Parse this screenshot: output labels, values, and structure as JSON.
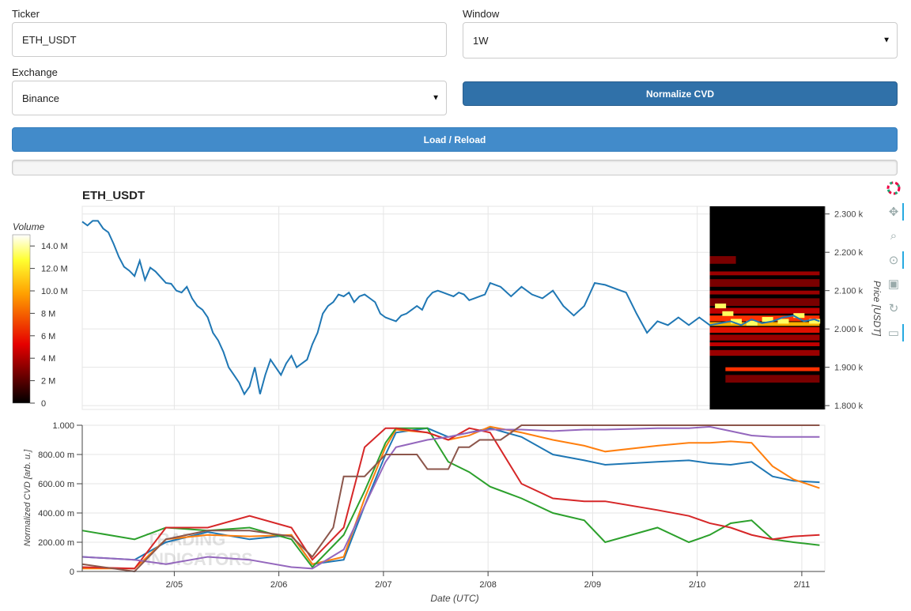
{
  "form": {
    "ticker_label": "Ticker",
    "ticker_value": "ETH_USDT",
    "window_label": "Window",
    "window_value": "1W",
    "exchange_label": "Exchange",
    "exchange_value": "Binance",
    "normalize_button": "Normalize CVD",
    "load_button": "Load / Reload"
  },
  "colors": {
    "primary_button": "#428bca",
    "active_button": "#3071a9",
    "price_line": "#1f77b4"
  },
  "toolbar": {
    "icons": [
      "bokeh-logo-icon",
      "pan-icon",
      "box-zoom-icon",
      "wheel-zoom-icon",
      "save-icon",
      "reset-icon",
      "hover-icon"
    ]
  },
  "chart_data": [
    {
      "type": "line",
      "title": "ETH_USDT",
      "ylabel": "Price [USDT]",
      "y_ticks": [
        "1.800 k",
        "1.900 k",
        "2.000 k",
        "2.100 k",
        "2.200 k",
        "2.300 k"
      ],
      "ylim": [
        1790,
        2320
      ],
      "xlim": [
        0,
        7.1
      ],
      "series": [
        {
          "x": [
            0.0,
            0.05,
            0.1,
            0.15,
            0.2,
            0.25,
            0.3,
            0.35,
            0.4,
            0.45,
            0.5,
            0.55,
            0.6,
            0.65,
            0.7,
            0.75,
            0.8,
            0.85,
            0.9,
            0.95,
            1.0,
            1.05,
            1.1,
            1.15,
            1.2,
            1.25,
            1.3,
            1.35,
            1.4,
            1.45,
            1.5,
            1.55,
            1.6,
            1.65,
            1.7,
            1.75,
            1.8,
            1.85,
            1.9,
            1.95,
            2.0,
            2.05,
            2.1,
            2.15,
            2.2,
            2.25,
            2.3,
            2.35,
            2.4,
            2.45,
            2.5,
            2.55,
            2.6,
            2.65,
            2.7,
            2.75,
            2.8,
            2.85,
            2.9,
            2.95,
            3.0,
            3.05,
            3.1,
            3.15,
            3.2,
            3.25,
            3.3,
            3.35,
            3.4,
            3.45,
            3.5,
            3.55,
            3.6,
            3.65,
            3.7,
            3.75,
            3.8,
            3.85,
            3.9,
            3.95,
            4.0,
            4.1,
            4.2,
            4.3,
            4.4,
            4.5,
            4.6,
            4.7,
            4.8,
            4.9,
            5.0,
            5.1,
            5.2,
            5.3,
            5.4,
            5.5,
            5.6,
            5.7,
            5.8,
            5.9,
            6.0,
            6.1,
            6.2,
            6.3,
            6.4,
            6.5,
            6.6,
            6.7,
            6.8,
            6.9,
            7.0,
            7.05
          ],
          "y": [
            2280,
            2270,
            2282,
            2282,
            2262,
            2252,
            2222,
            2188,
            2162,
            2152,
            2138,
            2178,
            2128,
            2160,
            2150,
            2135,
            2120,
            2118,
            2100,
            2095,
            2110,
            2080,
            2060,
            2050,
            2030,
            1990,
            1970,
            1940,
            1900,
            1880,
            1860,
            1830,
            1850,
            1900,
            1830,
            1880,
            1920,
            1900,
            1880,
            1910,
            1930,
            1900,
            1910,
            1920,
            1960,
            1990,
            2040,
            2060,
            2070,
            2090,
            2085,
            2095,
            2070,
            2085,
            2090,
            2080,
            2070,
            2040,
            2030,
            2025,
            2020,
            2035,
            2040,
            2050,
            2060,
            2050,
            2080,
            2095,
            2100,
            2095,
            2090,
            2085,
            2095,
            2090,
            2075,
            2080,
            2085,
            2090,
            2120,
            2115,
            2110,
            2085,
            2110,
            2090,
            2080,
            2100,
            2060,
            2035,
            2060,
            2120,
            2115,
            2105,
            2095,
            2040,
            1990,
            2020,
            2010,
            2030,
            2010,
            2030,
            2010,
            2015,
            2020,
            2010,
            2025,
            2015,
            2020,
            2030,
            2035,
            2020,
            2025,
            2020
          ],
          "color": "#1f77b4"
        }
      ]
    },
    {
      "type": "heatmap",
      "colorbar_title": "Volume",
      "colorbar_ticks": [
        "0",
        "2 M",
        "4 M",
        "6 M",
        "8 M",
        "10.0 M",
        "12.0 M",
        "14.0 M"
      ],
      "vmax": 15000000
    },
    {
      "type": "line",
      "xlabel": "Date (UTC)",
      "ylabel": "Normalized CVD [arb. u.]",
      "x_ticks": [
        "2/05",
        "2/06",
        "2/07",
        "2/08",
        "2/09",
        "2/10",
        "2/11"
      ],
      "y_ticks": [
        "0",
        "200.00 m",
        "400.00 m",
        "600.00 m",
        "800.00 m",
        "1.000"
      ],
      "xlim": [
        0,
        7.1
      ],
      "ylim": [
        0,
        1.0
      ],
      "series": [
        {
          "color": "#1f77b4",
          "x": [
            0,
            0.5,
            0.8,
            1.2,
            1.6,
            2.0,
            2.2,
            2.5,
            2.7,
            2.9,
            3.0,
            3.3,
            3.5,
            3.7,
            3.9,
            4.2,
            4.5,
            4.8,
            5.0,
            5.5,
            5.8,
            6.0,
            6.2,
            6.4,
            6.6,
            6.8,
            7.05
          ],
          "y": [
            0.1,
            0.08,
            0.2,
            0.27,
            0.22,
            0.25,
            0.05,
            0.08,
            0.45,
            0.8,
            0.95,
            0.98,
            0.92,
            0.95,
            0.98,
            0.92,
            0.8,
            0.76,
            0.73,
            0.75,
            0.76,
            0.74,
            0.73,
            0.75,
            0.65,
            0.62,
            0.61
          ]
        },
        {
          "color": "#ff7f0e",
          "x": [
            0,
            0.5,
            0.8,
            1.2,
            1.6,
            2.0,
            2.2,
            2.5,
            2.7,
            2.9,
            3.0,
            3.3,
            3.5,
            3.7,
            3.9,
            4.2,
            4.5,
            4.8,
            5.0,
            5.5,
            5.8,
            6.0,
            6.2,
            6.4,
            6.6,
            6.8,
            7.05
          ],
          "y": [
            0.02,
            0.02,
            0.22,
            0.25,
            0.24,
            0.25,
            0.05,
            0.1,
            0.5,
            0.85,
            0.97,
            0.95,
            0.9,
            0.93,
            0.99,
            0.95,
            0.9,
            0.86,
            0.82,
            0.86,
            0.88,
            0.88,
            0.89,
            0.88,
            0.72,
            0.63,
            0.57
          ]
        },
        {
          "color": "#2ca02c",
          "x": [
            0,
            0.5,
            0.8,
            1.2,
            1.6,
            2.0,
            2.2,
            2.5,
            2.7,
            2.9,
            3.0,
            3.3,
            3.5,
            3.7,
            3.9,
            4.2,
            4.5,
            4.8,
            5.0,
            5.5,
            5.8,
            6.0,
            6.2,
            6.4,
            6.6,
            6.8,
            7.05
          ],
          "y": [
            0.28,
            0.22,
            0.3,
            0.28,
            0.3,
            0.22,
            0.03,
            0.25,
            0.55,
            0.88,
            0.98,
            0.98,
            0.75,
            0.68,
            0.58,
            0.5,
            0.4,
            0.35,
            0.2,
            0.3,
            0.2,
            0.25,
            0.33,
            0.35,
            0.22,
            0.2,
            0.18
          ]
        },
        {
          "color": "#d62728",
          "x": [
            0,
            0.5,
            0.8,
            1.2,
            1.6,
            2.0,
            2.2,
            2.5,
            2.7,
            2.9,
            3.0,
            3.3,
            3.5,
            3.7,
            3.9,
            4.2,
            4.5,
            4.8,
            5.0,
            5.5,
            5.8,
            6.0,
            6.2,
            6.4,
            6.6,
            6.8,
            7.05
          ],
          "y": [
            0.03,
            0.02,
            0.3,
            0.3,
            0.38,
            0.3,
            0.08,
            0.3,
            0.85,
            0.98,
            0.98,
            0.95,
            0.9,
            0.98,
            0.95,
            0.6,
            0.5,
            0.48,
            0.48,
            0.42,
            0.38,
            0.33,
            0.3,
            0.25,
            0.22,
            0.24,
            0.25
          ]
        },
        {
          "color": "#9467bd",
          "x": [
            0,
            0.5,
            0.8,
            1.2,
            1.6,
            2.0,
            2.2,
            2.5,
            2.7,
            2.9,
            3.0,
            3.3,
            3.5,
            3.7,
            3.9,
            4.2,
            4.5,
            4.8,
            5.0,
            5.5,
            5.8,
            6.0,
            6.2,
            6.4,
            6.6,
            6.8,
            7.05
          ],
          "y": [
            0.1,
            0.08,
            0.05,
            0.1,
            0.08,
            0.03,
            0.02,
            0.15,
            0.45,
            0.75,
            0.85,
            0.9,
            0.92,
            0.95,
            0.97,
            0.97,
            0.96,
            0.97,
            0.97,
            0.98,
            0.98,
            0.99,
            0.96,
            0.93,
            0.92,
            0.92,
            0.92
          ]
        },
        {
          "color": "#8c564b",
          "x": [
            0,
            0.5,
            0.8,
            1.2,
            1.6,
            2.0,
            2.2,
            2.4,
            2.5,
            2.7,
            2.9,
            3.0,
            3.2,
            3.3,
            3.5,
            3.6,
            3.7,
            3.8,
            3.9,
            4.0,
            4.2,
            5.0,
            6.0,
            7.05
          ],
          "y": [
            0.05,
            0.0,
            0.22,
            0.28,
            0.28,
            0.24,
            0.1,
            0.3,
            0.65,
            0.65,
            0.8,
            0.8,
            0.8,
            0.7,
            0.7,
            0.85,
            0.85,
            0.9,
            0.9,
            0.9,
            1.0,
            1.0,
            1.0,
            1.0
          ]
        }
      ]
    }
  ]
}
